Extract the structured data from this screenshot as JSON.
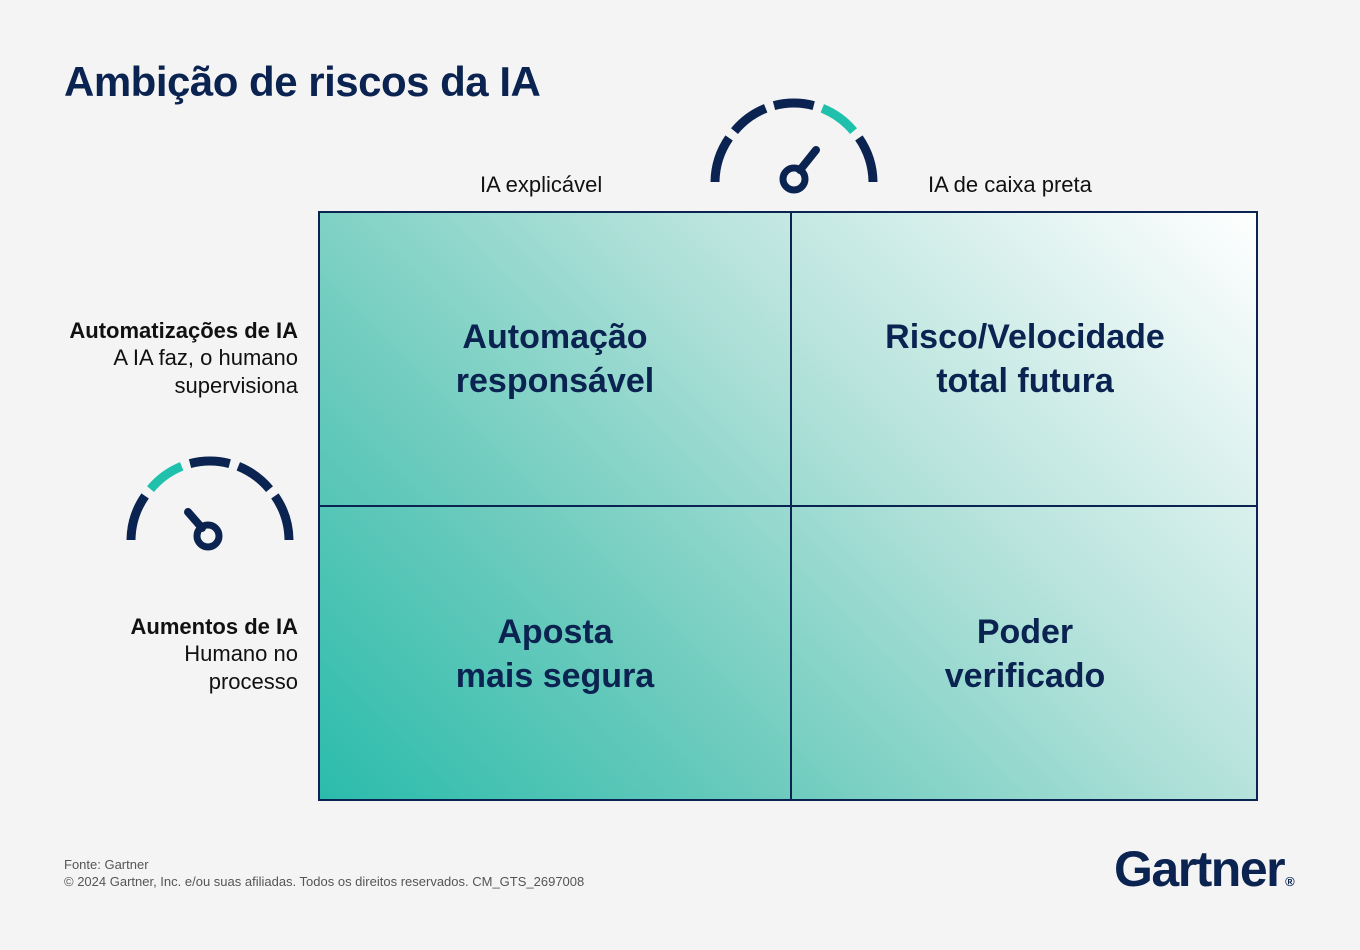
{
  "title": "Ambição de riscos da IA",
  "columns": {
    "left": "IA explicável",
    "right": "IA de caixa preta"
  },
  "rows": {
    "top": {
      "title": "Automatizações de IA",
      "subtitle": "A IA faz, o humano\nsupervisiona"
    },
    "bottom": {
      "title": "Aumentos de IA",
      "subtitle": "Humano no\nprocesso"
    }
  },
  "quadrants": {
    "top_left": "Automação\nresponsável",
    "top_right": "Risco/Velocidade\ntotal futura",
    "bottom_left": "Aposta\nmais segura",
    "bottom_right": "Poder\nverificado"
  },
  "gauges": {
    "top": {
      "icon": "speedometer-high-icon",
      "highlight_segment": "upper-right"
    },
    "left": {
      "icon": "speedometer-low-icon",
      "highlight_segment": "upper-left"
    }
  },
  "colors": {
    "navy": "#0b2350",
    "teal": "#1fc1ad",
    "gradient_dark": "#2bbcac",
    "gradient_light": "#ffffff"
  },
  "footer": {
    "source": "Fonte: Gartner",
    "copyright": "© 2024 Gartner, Inc. e/ou suas afiliadas. Todos os direitos reservados. CM_GTS_2697008"
  },
  "logo": {
    "text": "Gartner",
    "mark": "®"
  }
}
